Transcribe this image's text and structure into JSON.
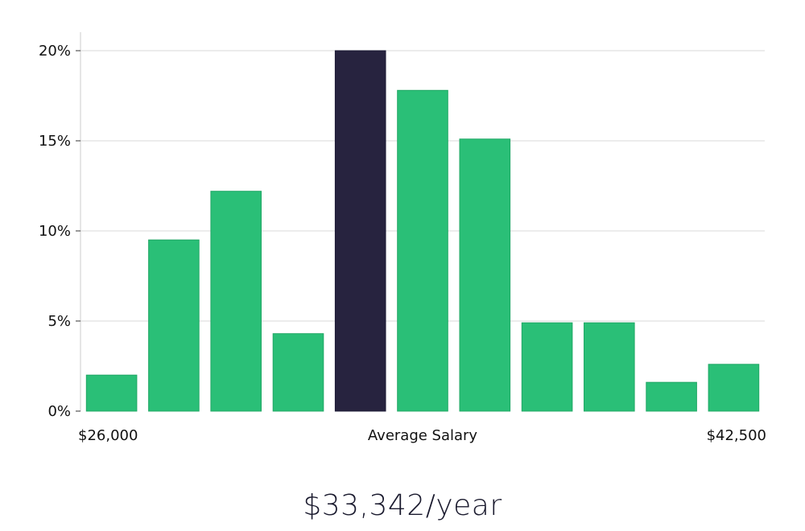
{
  "chart_data": {
    "type": "bar",
    "values": [
      2.0,
      9.5,
      12.2,
      4.3,
      20.0,
      17.8,
      15.1,
      4.9,
      4.9,
      1.6,
      2.6
    ],
    "highlight_index": 4,
    "ylim": [
      0,
      20
    ],
    "y_ticks": [
      {
        "value": 0,
        "label": "0%"
      },
      {
        "value": 5,
        "label": "5%"
      },
      {
        "value": 10,
        "label": "10%"
      },
      {
        "value": 15,
        "label": "15%"
      },
      {
        "value": 20,
        "label": "20%"
      }
    ],
    "x_labels": {
      "min": "$26,000",
      "center": "Average Salary",
      "max": "$42,500"
    },
    "grid": true,
    "colors": {
      "bar": "#2abf77",
      "highlight": "#27233f",
      "grid": "#d9d9d9",
      "axis": "#cccccc"
    }
  },
  "salary": {
    "text": "$33,342/year"
  }
}
